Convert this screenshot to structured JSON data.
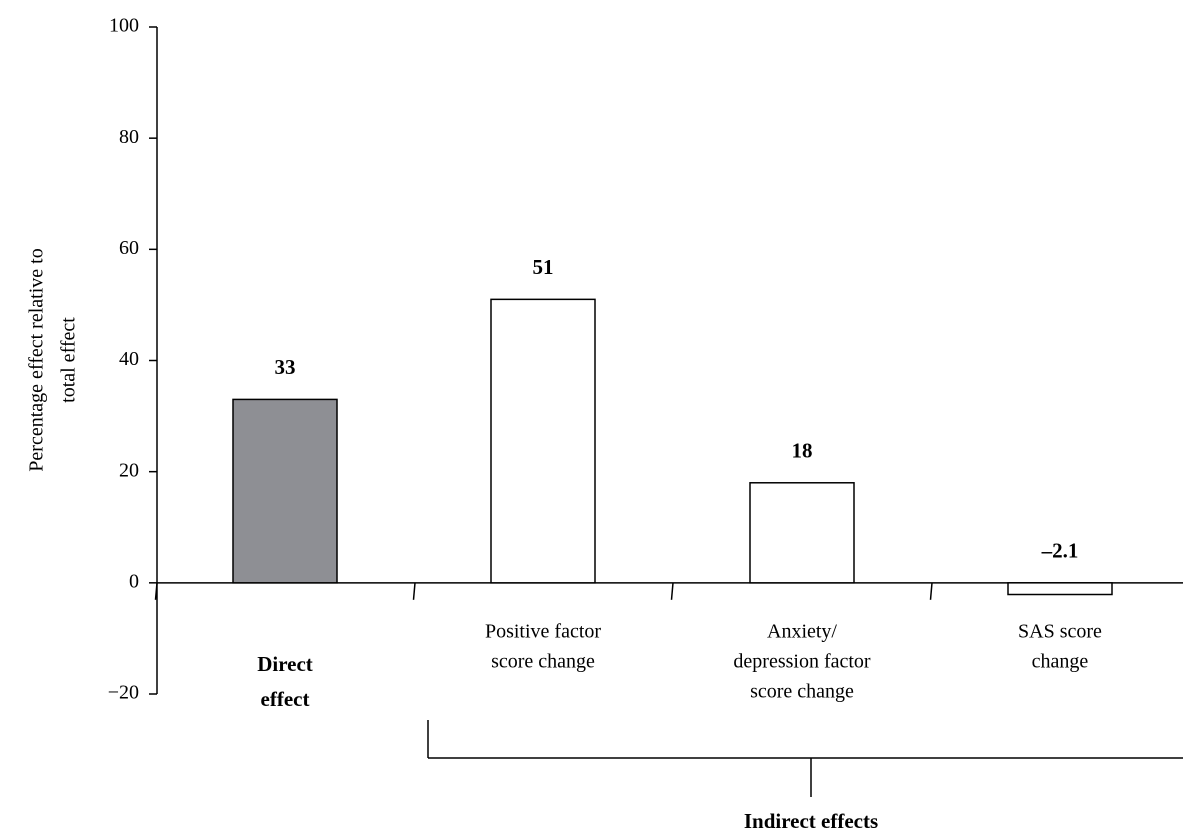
{
  "chart_data": {
    "type": "bar",
    "title": "",
    "ylabel_lines": [
      "Percentage effect relative to",
      "total effect"
    ],
    "xlabel": "",
    "ylim": [
      -20,
      100
    ],
    "yticks": [
      {
        "value": 100,
        "label": "100"
      },
      {
        "value": 80,
        "label": "80"
      },
      {
        "value": 60,
        "label": "60"
      },
      {
        "value": 40,
        "label": "40"
      },
      {
        "value": 20,
        "label": "20"
      },
      {
        "value": 0,
        "label": "0"
      },
      {
        "value": -20,
        "label": "−20"
      }
    ],
    "grid": false,
    "bars": [
      {
        "label_lines": [
          "Direct",
          "effect"
        ],
        "label_bold": true,
        "value": 33,
        "value_label": "33",
        "fill": "#8e8f94"
      },
      {
        "label_lines": [
          "Positive factor",
          "score change"
        ],
        "label_bold": false,
        "value": 51,
        "value_label": "51",
        "fill": "#ffffff"
      },
      {
        "label_lines": [
          "Anxiety/",
          "depression factor",
          "score change"
        ],
        "label_bold": false,
        "value": 18,
        "value_label": "18",
        "fill": "#ffffff"
      },
      {
        "label_lines": [
          "SAS score",
          "change"
        ],
        "label_bold": false,
        "value": -2.1,
        "value_label": "–2.1",
        "fill": "#ffffff"
      }
    ],
    "group_bracket": {
      "label": "Indirect effects",
      "covers_bars": [
        1,
        2,
        3
      ]
    },
    "colors": {
      "direct_bar": "#8e8f94",
      "indirect_bar": "#ffffff",
      "stroke": "#000000"
    }
  }
}
